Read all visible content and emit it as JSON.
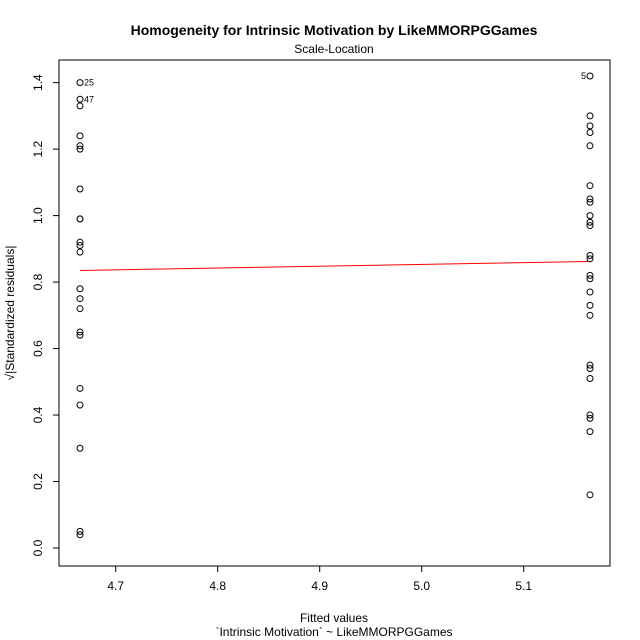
{
  "chart_data": {
    "type": "scatter",
    "title": "Homogeneity for Intrinsic Motivation by LikeMMORPGGames",
    "subtitle": "Scale-Location",
    "xlabel": "Fitted values",
    "xlabel_sub": "`Intrinsic Motivation` ~ LikeMMORPGGames",
    "ylabel": "√|Standardized residuals|",
    "xlim": [
      4.665,
      5.165
    ],
    "ylim": [
      0.0,
      1.42
    ],
    "xticks": [
      "4.7",
      "4.8",
      "4.9",
      "5.0",
      "5.1"
    ],
    "yticks": [
      "0.0",
      "0.2",
      "0.4",
      "0.6",
      "0.8",
      "1.0",
      "1.2",
      "1.4"
    ],
    "grid": false,
    "point_color": "#000000",
    "line_color": "#ff0000",
    "series": [
      {
        "x": 4.665,
        "y": [
          1.4,
          1.35,
          1.33,
          1.24,
          1.21,
          1.2,
          1.08,
          0.99,
          0.99,
          0.92,
          0.91,
          0.89,
          0.78,
          0.75,
          0.72,
          0.65,
          0.64,
          0.48,
          0.43,
          0.3,
          0.05,
          0.04
        ]
      },
      {
        "x": 5.165,
        "y": [
          1.42,
          1.3,
          1.27,
          1.25,
          1.21,
          1.09,
          1.05,
          1.04,
          1.0,
          0.98,
          0.97,
          0.88,
          0.87,
          0.82,
          0.81,
          0.77,
          0.73,
          0.7,
          0.55,
          0.54,
          0.51,
          0.4,
          0.39,
          0.35,
          0.16
        ]
      }
    ],
    "trend_line": {
      "x": [
        4.665,
        5.165
      ],
      "y": [
        0.835,
        0.862
      ]
    },
    "labeled_points": [
      {
        "label": "25",
        "x": 4.665,
        "y": 1.4,
        "side": "right"
      },
      {
        "label": "47",
        "x": 4.665,
        "y": 1.35,
        "side": "right"
      },
      {
        "label": "5",
        "x": 5.165,
        "y": 1.42,
        "side": "left"
      }
    ]
  }
}
